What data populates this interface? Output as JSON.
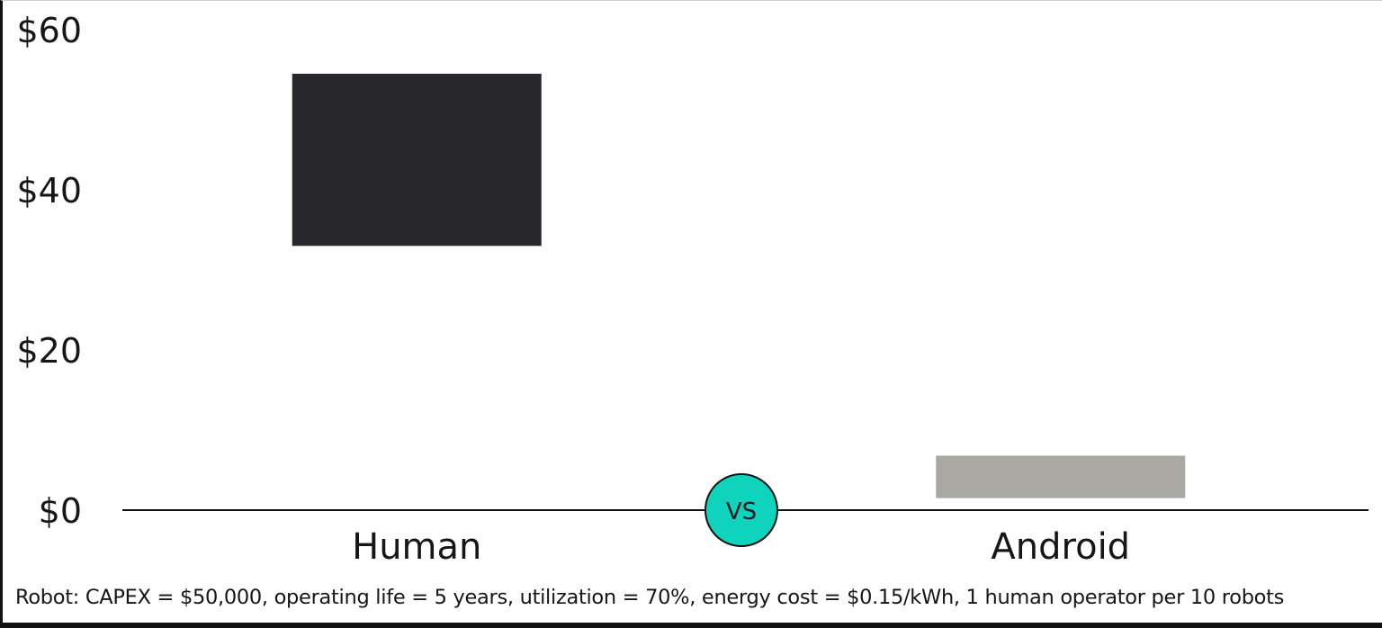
{
  "chart_data": {
    "type": "bar",
    "subtype": "floating-range",
    "categories": [
      "Human",
      "Android"
    ],
    "series": [
      {
        "ranges": [
          {
            "low": 33,
            "high": 54.5
          },
          {
            "low": 1.5,
            "high": 6.8
          }
        ],
        "colors": [
          "#28282c",
          "#a9a8a3"
        ]
      }
    ],
    "yticks": [
      0,
      20,
      40,
      60
    ],
    "ytick_labels": [
      "$0",
      "$20",
      "$40",
      "$60"
    ],
    "ylim": [
      0,
      60
    ],
    "grid": false,
    "legend": "none",
    "annotation": {
      "text": "VS",
      "fill": "#10d3be",
      "stroke": "#111111"
    }
  },
  "footnote": "Robot: CAPEX = $50,000, operating life = 5 years, utilization = 70%, energy cost = $0.15/kWh, 1 human operator per 10 robots"
}
